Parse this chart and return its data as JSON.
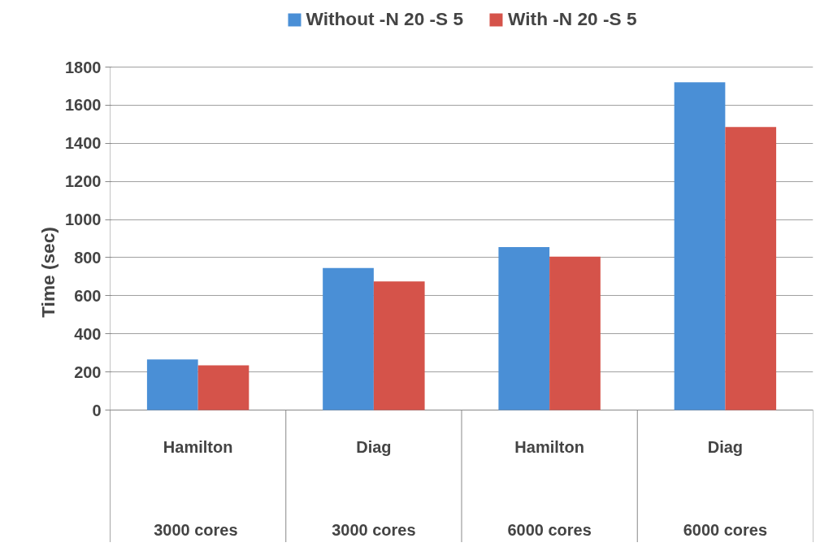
{
  "chart_data": {
    "type": "bar",
    "ylabel": "Time (sec)",
    "categories": [
      "Hamilton",
      "Diag",
      "Hamilton",
      "Diag"
    ],
    "series": [
      {
        "name": "Without -N 20 -S 5",
        "color": "#4a8fd6",
        "values": [
          265,
          745,
          855,
          1720
        ]
      },
      {
        "name": "With -N 20 -S 5",
        "color": "#d5534a",
        "values": [
          235,
          675,
          805,
          1485
        ]
      }
    ],
    "annotations": [
      "3000  cores",
      "3000 cores",
      "6000 cores",
      "6000 cores"
    ],
    "ylim": [
      0,
      1800
    ],
    "yticks": [
      0,
      200,
      400,
      600,
      800,
      1000,
      1200,
      1400,
      1600,
      1800
    ],
    "grid": "y",
    "legend": "top"
  }
}
